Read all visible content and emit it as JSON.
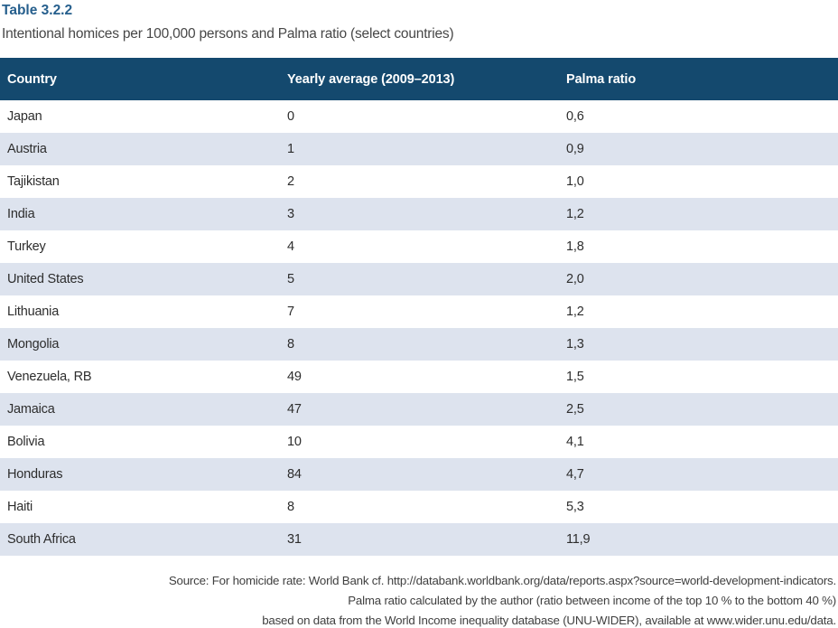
{
  "title": "Table 3.2.2",
  "subtitle": "Intentional homices per 100,000 persons and Palma ratio (select countries)",
  "table": {
    "columns": [
      "Country",
      "Yearly average (2009–2013)",
      "Palma ratio"
    ],
    "column_keys": [
      "country",
      "yearly-average",
      "palma-ratio"
    ],
    "rows": [
      {
        "country": "Japan",
        "yearly_average": "0",
        "palma_ratio": "0,6"
      },
      {
        "country": "Austria",
        "yearly_average": "1",
        "palma_ratio": "0,9"
      },
      {
        "country": "Tajikistan",
        "yearly_average": "2",
        "palma_ratio": "1,0"
      },
      {
        "country": "India",
        "yearly_average": "3",
        "palma_ratio": "1,2"
      },
      {
        "country": "Turkey",
        "yearly_average": "4",
        "palma_ratio": "1,8"
      },
      {
        "country": "United States",
        "yearly_average": "5",
        "palma_ratio": "2,0"
      },
      {
        "country": "Lithuania",
        "yearly_average": "7",
        "palma_ratio": "1,2"
      },
      {
        "country": "Mongolia",
        "yearly_average": "8",
        "palma_ratio": "1,3"
      },
      {
        "country": "Venezuela, RB",
        "yearly_average": "49",
        "palma_ratio": "1,5"
      },
      {
        "country": "Jamaica",
        "yearly_average": "47",
        "palma_ratio": "2,5"
      },
      {
        "country": "Bolivia",
        "yearly_average": "10",
        "palma_ratio": "4,1"
      },
      {
        "country": "Honduras",
        "yearly_average": "84",
        "palma_ratio": "4,7"
      },
      {
        "country": "Haiti",
        "yearly_average": "8",
        "palma_ratio": "5,3"
      },
      {
        "country": "South Africa",
        "yearly_average": "31",
        "palma_ratio": "11,9"
      }
    ]
  },
  "source_lines": [
    "Source: For homicide rate: World Bank cf. http://databank.worldbank.org/data/reports.aspx?source=world-development-indicators.",
    "Palma ratio calculated by the author (ratio between income of the top 10 % to the bottom 40 %)",
    "based on data from the World Income inequality database (UNU-WIDER), available at www.wider.unu.edu/data."
  ],
  "colors": {
    "header_bg": "#14496e",
    "row_alt_bg": "#dde3ee",
    "title_color": "#265f8d",
    "body_text": "#2d2d2d",
    "header_text": "#ffffff"
  }
}
